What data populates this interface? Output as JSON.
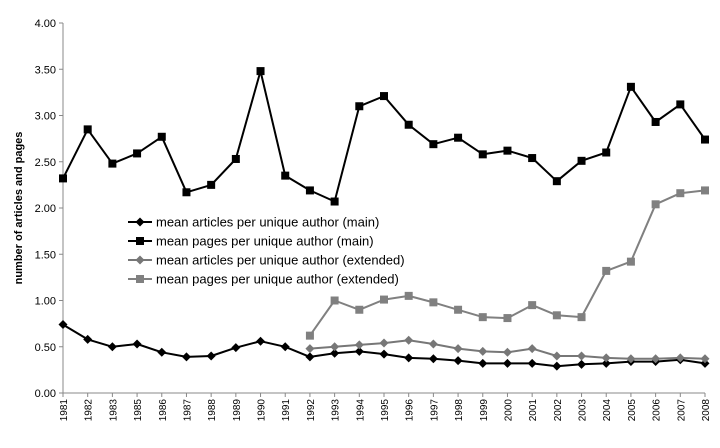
{
  "chart_data": {
    "type": "line",
    "title": "",
    "xlabel": "",
    "ylabel": "number of articles and pages",
    "ylim": [
      0,
      4
    ],
    "y_ticks": [
      "0.00",
      "0.50",
      "1.00",
      "1.50",
      "2.00",
      "2.50",
      "3.00",
      "3.50",
      "4.00"
    ],
    "grid": false,
    "legend_position": "center-left",
    "categories": [
      "1981",
      "1982",
      "1983",
      "1985",
      "1986",
      "1987",
      "1988",
      "1989",
      "1990",
      "1991",
      "1992",
      "1993",
      "1994",
      "1995",
      "1996",
      "1997",
      "1998",
      "1999",
      "2000",
      "2001",
      "2002",
      "2003",
      "2004",
      "2005",
      "2006",
      "2007",
      "2008"
    ],
    "series": [
      {
        "name": "mean articles per unique author (main)",
        "color": "#000000",
        "marker": "diamond",
        "values": [
          0.74,
          0.58,
          0.5,
          0.53,
          0.44,
          0.39,
          0.4,
          0.49,
          0.56,
          0.5,
          0.39,
          0.43,
          0.45,
          0.42,
          0.38,
          0.37,
          0.35,
          0.32,
          0.32,
          0.32,
          0.29,
          0.31,
          0.32,
          0.34,
          0.34,
          0.36,
          0.32
        ]
      },
      {
        "name": "mean pages per unique author (main)",
        "color": "#000000",
        "marker": "square",
        "values": [
          2.32,
          2.85,
          2.48,
          2.59,
          2.77,
          2.17,
          2.25,
          2.53,
          3.48,
          2.35,
          2.19,
          2.07,
          3.1,
          3.21,
          2.9,
          2.69,
          2.76,
          2.58,
          2.62,
          2.54,
          2.29,
          2.51,
          2.6,
          3.31,
          2.93,
          3.12,
          2.74
        ]
      },
      {
        "name": "mean articles per unique author (extended)",
        "color": "#777777",
        "marker": "diamond",
        "values": [
          null,
          null,
          null,
          null,
          null,
          null,
          null,
          null,
          null,
          null,
          0.48,
          0.5,
          0.52,
          0.54,
          0.57,
          0.53,
          0.48,
          0.45,
          0.44,
          0.48,
          0.4,
          0.4,
          0.38,
          0.37,
          0.37,
          0.38,
          0.37
        ]
      },
      {
        "name": "mean pages per unique author (extended)",
        "color": "#808080",
        "marker": "square",
        "values": [
          null,
          null,
          null,
          null,
          null,
          null,
          null,
          null,
          null,
          null,
          0.62,
          1.0,
          0.9,
          1.01,
          1.05,
          0.98,
          0.9,
          0.82,
          0.81,
          0.95,
          0.84,
          0.82,
          1.32,
          1.42,
          2.04,
          2.16,
          2.19
        ]
      }
    ]
  }
}
